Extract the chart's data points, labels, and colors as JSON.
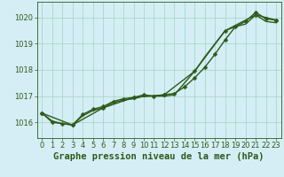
{
  "title": "Graphe pression niveau de la mer (hPa)",
  "background_color": "#d5eef5",
  "plot_bg_color": "#d5eef5",
  "grid_color": "#a8d8c8",
  "line_color": "#2d5a1b",
  "xlim": [
    -0.5,
    23.5
  ],
  "ylim": [
    1015.4,
    1020.6
  ],
  "yticks": [
    1016,
    1017,
    1018,
    1019,
    1020
  ],
  "xticks": [
    0,
    1,
    2,
    3,
    4,
    5,
    6,
    7,
    8,
    9,
    10,
    11,
    12,
    13,
    14,
    15,
    16,
    17,
    18,
    19,
    20,
    21,
    22,
    23
  ],
  "series1_x": [
    0,
    1,
    2,
    3,
    4,
    5,
    6,
    7,
    8,
    9,
    10,
    11,
    12,
    13,
    14,
    15,
    16,
    17,
    18,
    19,
    20,
    21,
    22,
    23
  ],
  "series1_y": [
    1016.35,
    1016.0,
    1015.95,
    1015.9,
    1016.3,
    1016.5,
    1016.6,
    1016.8,
    1016.9,
    1016.95,
    1017.05,
    1017.0,
    1017.05,
    1017.1,
    1017.35,
    1017.7,
    1018.1,
    1018.6,
    1019.15,
    1019.65,
    1019.85,
    1020.2,
    1019.95,
    1019.9
  ],
  "series2_x": [
    0,
    1,
    2,
    3,
    4,
    5,
    6,
    7,
    8,
    9,
    10,
    11,
    12,
    13,
    14,
    15,
    16,
    17,
    18,
    19,
    20,
    21,
    22,
    23
  ],
  "series2_y": [
    1016.35,
    1016.05,
    1015.95,
    1015.9,
    1016.25,
    1016.45,
    1016.55,
    1016.75,
    1016.85,
    1016.9,
    1017.0,
    1017.0,
    1017.0,
    1017.05,
    1017.5,
    1017.95,
    1018.5,
    1019.0,
    1019.5,
    1019.65,
    1019.75,
    1020.1,
    1019.85,
    1019.8
  ],
  "series3_x": [
    0,
    3,
    6,
    9,
    12,
    15,
    18,
    21,
    23
  ],
  "series3_y": [
    1016.35,
    1015.9,
    1016.55,
    1016.95,
    1017.05,
    1017.95,
    1019.5,
    1020.1,
    1019.9
  ],
  "font_color": "#2d5a1b",
  "title_fontsize": 7.5,
  "tick_fontsize": 6.0,
  "linewidth1": 1.0,
  "linewidth2": 1.0,
  "linewidth3": 1.0,
  "markersize": 2.5
}
